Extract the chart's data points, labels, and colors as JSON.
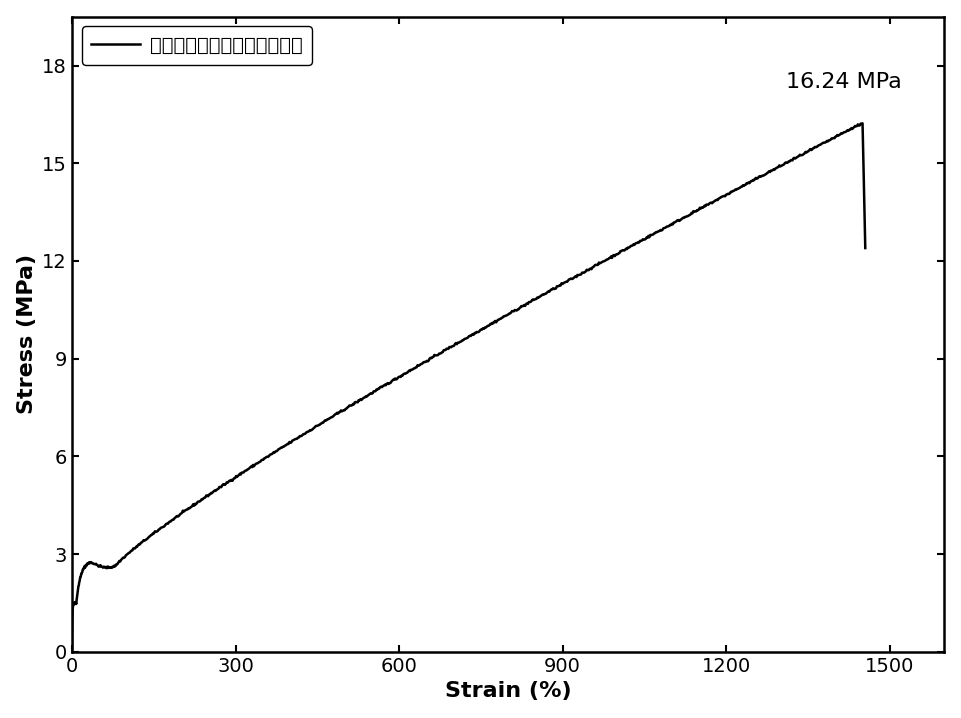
{
  "xlabel": "Strain (%)",
  "ylabel": "Stress (MPa)",
  "legend_label": "钓氧团簇基固态聚合物电解质",
  "annotation": "16.24 MPa",
  "xlim": [
    0,
    1600
  ],
  "ylim": [
    0,
    19.5
  ],
  "xticks": [
    0,
    300,
    600,
    900,
    1200,
    1500
  ],
  "yticks": [
    0,
    3,
    6,
    9,
    12,
    15,
    18
  ],
  "line_color": "#000000",
  "background_color": "#ffffff",
  "peak_strain": 1450,
  "peak_stress": 16.24,
  "drop_end_strain": 1455,
  "drop_end_stress": 12.5
}
